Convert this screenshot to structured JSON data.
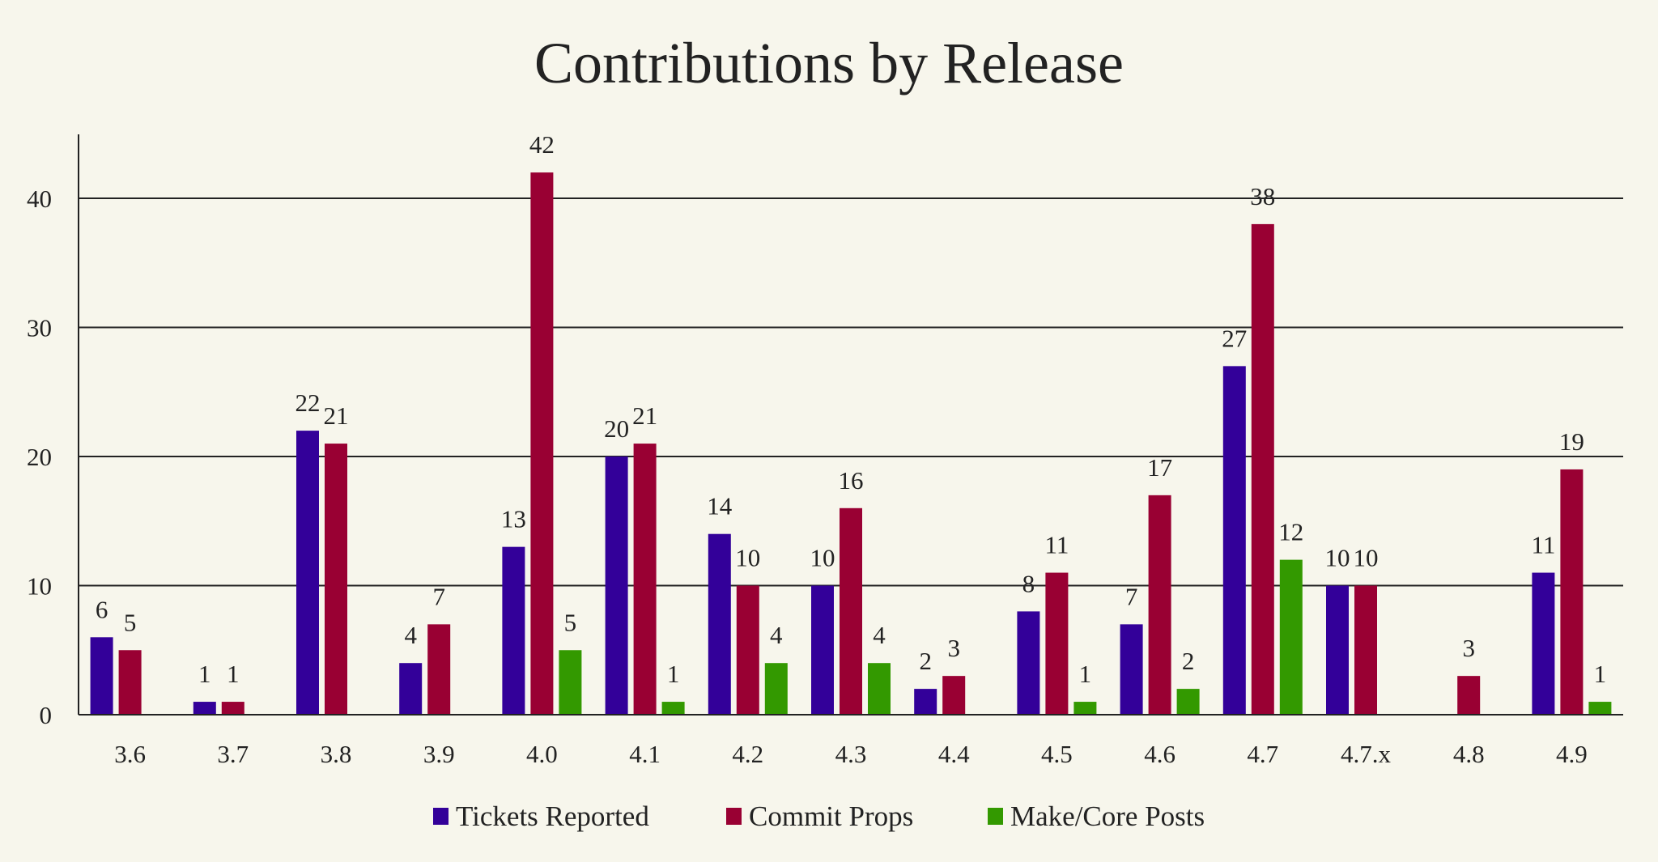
{
  "chart_data": {
    "type": "bar",
    "title": "Contributions by Release",
    "xlabel": "",
    "ylabel": "",
    "ylim": [
      0,
      45
    ],
    "yticks": [
      0,
      10,
      20,
      30,
      40
    ],
    "grid": true,
    "legend_position": "bottom",
    "categories": [
      "3.6",
      "3.7",
      "3.8",
      "3.9",
      "4.0",
      "4.1",
      "4.2",
      "4.3",
      "4.4",
      "4.5",
      "4.6",
      "4.7",
      "4.7.x",
      "4.8",
      "4.9"
    ],
    "series": [
      {
        "name": "Tickets Reported",
        "color": "#330099",
        "values": [
          6,
          1,
          22,
          4,
          13,
          20,
          14,
          10,
          2,
          8,
          7,
          27,
          10,
          null,
          11
        ]
      },
      {
        "name": "Commit Props",
        "color": "#990033",
        "values": [
          5,
          1,
          21,
          7,
          42,
          21,
          10,
          16,
          3,
          11,
          17,
          38,
          10,
          3,
          19
        ]
      },
      {
        "name": "Make/Core Posts",
        "color": "#339900",
        "values": [
          null,
          null,
          null,
          null,
          5,
          1,
          4,
          4,
          null,
          1,
          2,
          12,
          null,
          null,
          1
        ]
      }
    ]
  }
}
